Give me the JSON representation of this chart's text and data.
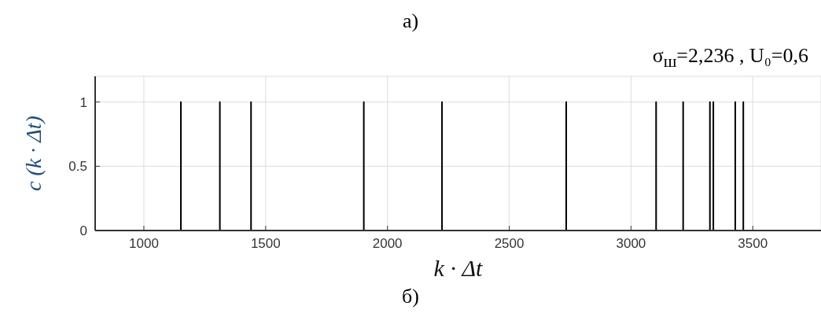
{
  "chart_data": {
    "type": "line",
    "title": "а)",
    "xlabel": "k · Δt",
    "ylabel": "c (k · Δt)",
    "annotations": [
      "σ$_{ш}$=2,236 , U₀=0,6",
      "б)"
    ],
    "x": [
      800,
      1152,
      1152,
      1152,
      1312,
      1312,
      1312,
      1440,
      1440,
      1440,
      1903,
      1903,
      1903,
      2224,
      2224,
      2224,
      2734,
      2734,
      2734,
      3103,
      3103,
      3103,
      3214,
      3214,
      3214,
      3324,
      3324,
      3324,
      3338,
      3338,
      3338,
      3428,
      3428,
      3428,
      3461,
      3461,
      3461,
      3780
    ],
    "series": [
      {
        "color": "#000000",
        "values": [
          0,
          0,
          1,
          0,
          0,
          1,
          0,
          0,
          1,
          0,
          0,
          1,
          0,
          0,
          1,
          0,
          0,
          1,
          0,
          0,
          1,
          0,
          0,
          1,
          0,
          0,
          1,
          0,
          0,
          1,
          0,
          0,
          1,
          0,
          0,
          1,
          0,
          0
        ]
      }
    ],
    "xlim": [
      800,
      3780
    ],
    "xticks": [
      1000,
      1500,
      2000,
      2500,
      3000,
      3500
    ],
    "ylim": [
      0,
      1.2
    ],
    "yticks": [
      0,
      0.5,
      1
    ],
    "grid": true,
    "marker": "none"
  }
}
